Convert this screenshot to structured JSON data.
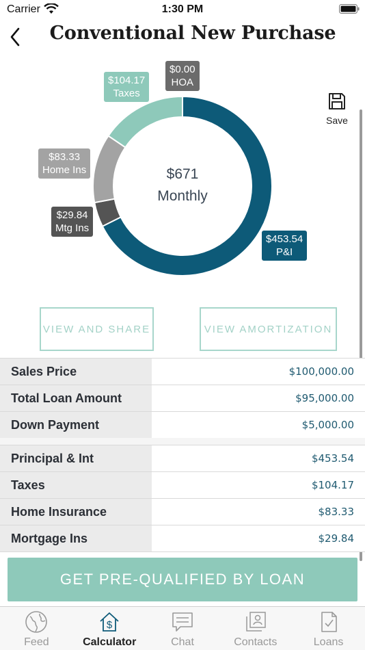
{
  "status_bar": {
    "carrier": "Carrier",
    "time": "1:30 PM"
  },
  "nav": {
    "title": "Conventional New Purchase"
  },
  "chart_data": {
    "type": "pie",
    "center_value": "$671",
    "center_label": "Monthly",
    "slices": [
      {
        "name": "P&I",
        "value": 453.54,
        "label": "$453.54",
        "color": "#0d5a78"
      },
      {
        "name": "Mtg Ins",
        "value": 29.84,
        "label": "$29.84",
        "color": "#545454"
      },
      {
        "name": "Home Ins",
        "value": 83.33,
        "label": "$83.33",
        "color": "#a3a3a3"
      },
      {
        "name": "Taxes",
        "value": 104.17,
        "label": "$104.17",
        "color": "#8ec9ba"
      },
      {
        "name": "HOA",
        "value": 0.0,
        "label": "$0.00",
        "color": "#6b6b6b"
      }
    ]
  },
  "save": {
    "label": "Save"
  },
  "buttons": {
    "view_share": "VIEW AND SHARE",
    "view_amortization": "VIEW AMORTIZATION"
  },
  "loan_details": [
    {
      "label": "Sales Price",
      "value": "$100,000.00"
    },
    {
      "label": "Total Loan Amount",
      "value": "$95,000.00"
    },
    {
      "label": "Down Payment",
      "value": "$5,000.00"
    }
  ],
  "payment_details": [
    {
      "label": "Principal & Int",
      "value": "$453.54"
    },
    {
      "label": "Taxes",
      "value": "$104.17"
    },
    {
      "label": "Home Insurance",
      "value": "$83.33"
    },
    {
      "label": "Mortgage Ins",
      "value": "$29.84"
    }
  ],
  "cta": {
    "label": "GET PRE-QUALIFIED BY LOAN"
  },
  "tabs": [
    {
      "label": "Feed",
      "icon": "globe-icon",
      "active": false
    },
    {
      "label": "Calculator",
      "icon": "calculator-house-icon",
      "active": true
    },
    {
      "label": "Chat",
      "icon": "chat-bubble-icon",
      "active": false
    },
    {
      "label": "Contacts",
      "icon": "contacts-icon",
      "active": false
    },
    {
      "label": "Loans",
      "icon": "loan-document-icon",
      "active": false
    }
  ]
}
